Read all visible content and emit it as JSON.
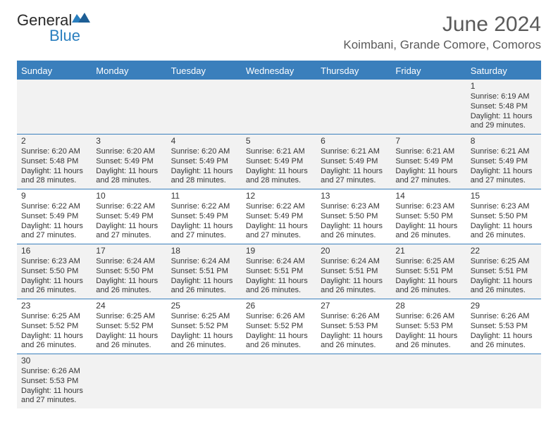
{
  "brand": {
    "part1": "General",
    "part2": "Blue"
  },
  "title": "June 2024",
  "location": "Koimbani, Grande Comore, Comoros",
  "colors": {
    "header_bar": "#3a7fbc",
    "text": "#353535",
    "title_text": "#5a5a5a",
    "alt_row": "#f2f2f2",
    "rule": "#3a7fbc"
  },
  "day_headers": [
    "Sunday",
    "Monday",
    "Tuesday",
    "Wednesday",
    "Thursday",
    "Friday",
    "Saturday"
  ],
  "weeks": [
    [
      null,
      null,
      null,
      null,
      null,
      null,
      {
        "n": "1",
        "sr": "Sunrise: 6:19 AM",
        "ss": "Sunset: 5:48 PM",
        "d1": "Daylight: 11 hours",
        "d2": "and 29 minutes."
      }
    ],
    [
      {
        "n": "2",
        "sr": "Sunrise: 6:20 AM",
        "ss": "Sunset: 5:48 PM",
        "d1": "Daylight: 11 hours",
        "d2": "and 28 minutes."
      },
      {
        "n": "3",
        "sr": "Sunrise: 6:20 AM",
        "ss": "Sunset: 5:49 PM",
        "d1": "Daylight: 11 hours",
        "d2": "and 28 minutes."
      },
      {
        "n": "4",
        "sr": "Sunrise: 6:20 AM",
        "ss": "Sunset: 5:49 PM",
        "d1": "Daylight: 11 hours",
        "d2": "and 28 minutes."
      },
      {
        "n": "5",
        "sr": "Sunrise: 6:21 AM",
        "ss": "Sunset: 5:49 PM",
        "d1": "Daylight: 11 hours",
        "d2": "and 28 minutes."
      },
      {
        "n": "6",
        "sr": "Sunrise: 6:21 AM",
        "ss": "Sunset: 5:49 PM",
        "d1": "Daylight: 11 hours",
        "d2": "and 27 minutes."
      },
      {
        "n": "7",
        "sr": "Sunrise: 6:21 AM",
        "ss": "Sunset: 5:49 PM",
        "d1": "Daylight: 11 hours",
        "d2": "and 27 minutes."
      },
      {
        "n": "8",
        "sr": "Sunrise: 6:21 AM",
        "ss": "Sunset: 5:49 PM",
        "d1": "Daylight: 11 hours",
        "d2": "and 27 minutes."
      }
    ],
    [
      {
        "n": "9",
        "sr": "Sunrise: 6:22 AM",
        "ss": "Sunset: 5:49 PM",
        "d1": "Daylight: 11 hours",
        "d2": "and 27 minutes."
      },
      {
        "n": "10",
        "sr": "Sunrise: 6:22 AM",
        "ss": "Sunset: 5:49 PM",
        "d1": "Daylight: 11 hours",
        "d2": "and 27 minutes."
      },
      {
        "n": "11",
        "sr": "Sunrise: 6:22 AM",
        "ss": "Sunset: 5:49 PM",
        "d1": "Daylight: 11 hours",
        "d2": "and 27 minutes."
      },
      {
        "n": "12",
        "sr": "Sunrise: 6:22 AM",
        "ss": "Sunset: 5:49 PM",
        "d1": "Daylight: 11 hours",
        "d2": "and 27 minutes."
      },
      {
        "n": "13",
        "sr": "Sunrise: 6:23 AM",
        "ss": "Sunset: 5:50 PM",
        "d1": "Daylight: 11 hours",
        "d2": "and 26 minutes."
      },
      {
        "n": "14",
        "sr": "Sunrise: 6:23 AM",
        "ss": "Sunset: 5:50 PM",
        "d1": "Daylight: 11 hours",
        "d2": "and 26 minutes."
      },
      {
        "n": "15",
        "sr": "Sunrise: 6:23 AM",
        "ss": "Sunset: 5:50 PM",
        "d1": "Daylight: 11 hours",
        "d2": "and 26 minutes."
      }
    ],
    [
      {
        "n": "16",
        "sr": "Sunrise: 6:23 AM",
        "ss": "Sunset: 5:50 PM",
        "d1": "Daylight: 11 hours",
        "d2": "and 26 minutes."
      },
      {
        "n": "17",
        "sr": "Sunrise: 6:24 AM",
        "ss": "Sunset: 5:50 PM",
        "d1": "Daylight: 11 hours",
        "d2": "and 26 minutes."
      },
      {
        "n": "18",
        "sr": "Sunrise: 6:24 AM",
        "ss": "Sunset: 5:51 PM",
        "d1": "Daylight: 11 hours",
        "d2": "and 26 minutes."
      },
      {
        "n": "19",
        "sr": "Sunrise: 6:24 AM",
        "ss": "Sunset: 5:51 PM",
        "d1": "Daylight: 11 hours",
        "d2": "and 26 minutes."
      },
      {
        "n": "20",
        "sr": "Sunrise: 6:24 AM",
        "ss": "Sunset: 5:51 PM",
        "d1": "Daylight: 11 hours",
        "d2": "and 26 minutes."
      },
      {
        "n": "21",
        "sr": "Sunrise: 6:25 AM",
        "ss": "Sunset: 5:51 PM",
        "d1": "Daylight: 11 hours",
        "d2": "and 26 minutes."
      },
      {
        "n": "22",
        "sr": "Sunrise: 6:25 AM",
        "ss": "Sunset: 5:51 PM",
        "d1": "Daylight: 11 hours",
        "d2": "and 26 minutes."
      }
    ],
    [
      {
        "n": "23",
        "sr": "Sunrise: 6:25 AM",
        "ss": "Sunset: 5:52 PM",
        "d1": "Daylight: 11 hours",
        "d2": "and 26 minutes."
      },
      {
        "n": "24",
        "sr": "Sunrise: 6:25 AM",
        "ss": "Sunset: 5:52 PM",
        "d1": "Daylight: 11 hours",
        "d2": "and 26 minutes."
      },
      {
        "n": "25",
        "sr": "Sunrise: 6:25 AM",
        "ss": "Sunset: 5:52 PM",
        "d1": "Daylight: 11 hours",
        "d2": "and 26 minutes."
      },
      {
        "n": "26",
        "sr": "Sunrise: 6:26 AM",
        "ss": "Sunset: 5:52 PM",
        "d1": "Daylight: 11 hours",
        "d2": "and 26 minutes."
      },
      {
        "n": "27",
        "sr": "Sunrise: 6:26 AM",
        "ss": "Sunset: 5:53 PM",
        "d1": "Daylight: 11 hours",
        "d2": "and 26 minutes."
      },
      {
        "n": "28",
        "sr": "Sunrise: 6:26 AM",
        "ss": "Sunset: 5:53 PM",
        "d1": "Daylight: 11 hours",
        "d2": "and 26 minutes."
      },
      {
        "n": "29",
        "sr": "Sunrise: 6:26 AM",
        "ss": "Sunset: 5:53 PM",
        "d1": "Daylight: 11 hours",
        "d2": "and 26 minutes."
      }
    ],
    [
      {
        "n": "30",
        "sr": "Sunrise: 6:26 AM",
        "ss": "Sunset: 5:53 PM",
        "d1": "Daylight: 11 hours",
        "d2": "and 27 minutes."
      },
      null,
      null,
      null,
      null,
      null,
      null
    ]
  ]
}
